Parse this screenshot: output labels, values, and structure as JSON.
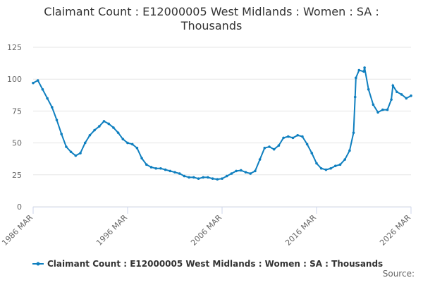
{
  "chart_data": {
    "type": "line",
    "title": "Claimant Count : E12000005 West Midlands : Women : SA : Thousands",
    "source": "Source:",
    "x": [
      "1986 MAR",
      "1986 SEP",
      "1987 MAR",
      "1987 SEP",
      "1988 MAR",
      "1988 SEP",
      "1989 MAR",
      "1989 SEP",
      "1990 MAR",
      "1990 SEP",
      "1991 MAR",
      "1991 SEP",
      "1992 MAR",
      "1992 SEP",
      "1993 MAR",
      "1993 SEP",
      "1994 MAR",
      "1994 SEP",
      "1995 MAR",
      "1995 SEP",
      "1996 MAR",
      "1996 SEP",
      "1997 MAR",
      "1997 SEP",
      "1998 MAR",
      "1998 SEP",
      "1999 MAR",
      "1999 SEP",
      "2000 MAR",
      "2000 SEP",
      "2001 MAR",
      "2001 SEP",
      "2002 MAR",
      "2002 SEP",
      "2003 MAR",
      "2003 SEP",
      "2004 MAR",
      "2004 SEP",
      "2005 MAR",
      "2005 SEP",
      "2006 MAR",
      "2006 SEP",
      "2007 MAR",
      "2007 SEP",
      "2008 MAR",
      "2008 SEP",
      "2009 MAR",
      "2009 SEP",
      "2010 MAR",
      "2010 SEP",
      "2011 MAR",
      "2011 SEP",
      "2012 MAR",
      "2012 SEP",
      "2013 MAR",
      "2013 SEP",
      "2014 MAR",
      "2014 SEP",
      "2015 MAR",
      "2015 SEP",
      "2016 MAR",
      "2016 SEP",
      "2017 MAR",
      "2017 SEP",
      "2018 MAR",
      "2018 SEP",
      "2019 MAR",
      "2019 SEP",
      "2020 FEB",
      "2020 APR",
      "2020 MAY",
      "2020 SEP",
      "2021 MAR",
      "2021 APR",
      "2021 SEP",
      "2022 MAR",
      "2022 SEP",
      "2023 MAR",
      "2023 SEP",
      "2024 FEB",
      "2024 APR",
      "2024 SEP",
      "2025 MAR",
      "2025 SEP",
      "2026 MAR"
    ],
    "series": [
      {
        "name": "Claimant Count : E12000005 West Midlands : Women : SA : Thousands",
        "color": "#0f7fbf",
        "values": [
          97,
          99,
          92,
          85,
          78,
          68,
          57,
          47,
          43,
          40,
          42,
          50,
          56,
          60,
          63,
          67,
          65,
          62,
          58,
          53,
          50,
          49,
          46,
          38,
          33,
          31,
          30,
          30,
          29,
          28,
          27,
          26,
          24,
          23,
          23,
          22,
          23,
          23,
          22,
          21.5,
          22,
          24,
          26,
          28,
          28.5,
          27,
          26,
          28,
          37,
          46,
          47,
          45,
          48,
          54,
          55,
          54,
          56,
          55,
          49,
          42,
          34,
          30,
          29,
          30,
          32,
          33,
          37,
          44,
          58,
          86,
          101,
          107,
          106,
          109,
          92,
          80,
          74,
          76,
          76,
          84,
          95,
          90,
          88,
          85,
          87
        ]
      }
    ],
    "xlim": [
      "1986 MAR",
      "2026 MAR"
    ],
    "xticks": [
      "1986 MAR",
      "1996 MAR",
      "2006 MAR",
      "2016 MAR",
      "2026 MAR"
    ],
    "ylim": [
      0,
      125
    ],
    "yticks": [
      0,
      25,
      50,
      75,
      100,
      125
    ],
    "grid": true
  }
}
